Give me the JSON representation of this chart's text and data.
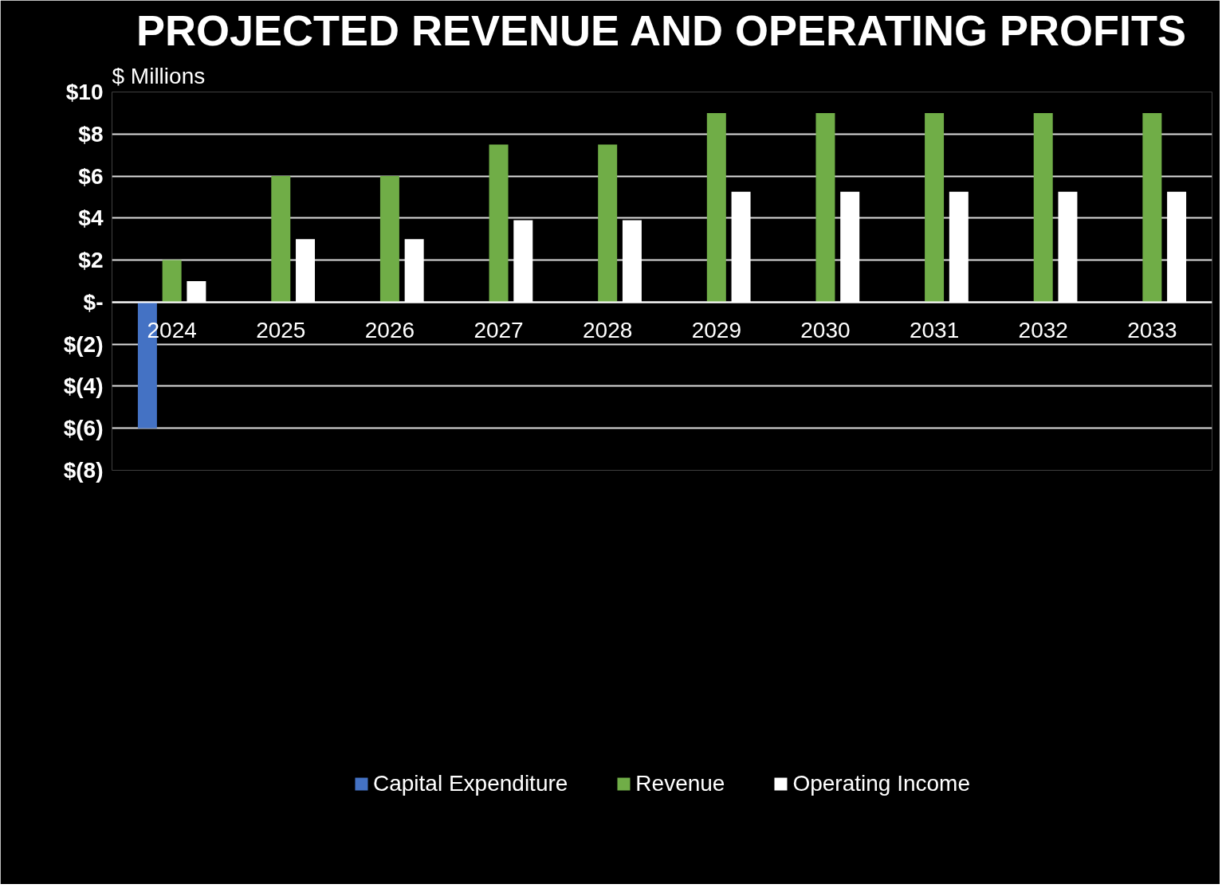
{
  "chart_data": {
    "type": "bar",
    "title": "PROJECTED REVENUE AND OPERATING PROFITS",
    "ylabel": "$ Millions",
    "categories": [
      "2024",
      "2025",
      "2026",
      "2027",
      "2028",
      "2029",
      "2030",
      "2031",
      "2032",
      "2033"
    ],
    "series": [
      {
        "name": "Capital Expenditure",
        "color": "#4472c4",
        "values": [
          -6,
          null,
          null,
          null,
          null,
          null,
          null,
          null,
          null,
          null
        ]
      },
      {
        "name": "Revenue",
        "color": "#70ad47",
        "values": [
          2,
          6,
          6,
          7.5,
          7.5,
          9,
          9,
          9,
          9,
          9
        ]
      },
      {
        "name": "Operating Income",
        "color": "#ffffff",
        "values": [
          1,
          3,
          3,
          3.9,
          3.9,
          5.25,
          5.25,
          5.25,
          5.25,
          5.25
        ]
      }
    ],
    "ylim": [
      -8,
      10
    ],
    "yticks": [
      {
        "value": -8,
        "label": "$(8)"
      },
      {
        "value": -6,
        "label": "$(6)"
      },
      {
        "value": -4,
        "label": "$(4)"
      },
      {
        "value": -2,
        "label": "$(2)"
      },
      {
        "value": 0,
        "label": "$-"
      },
      {
        "value": 2,
        "label": "$2"
      },
      {
        "value": 4,
        "label": "$4"
      },
      {
        "value": 6,
        "label": "$6"
      },
      {
        "value": 8,
        "label": "$8"
      },
      {
        "value": 10,
        "label": "$10"
      }
    ],
    "grid": "y",
    "legend": "bottom"
  }
}
